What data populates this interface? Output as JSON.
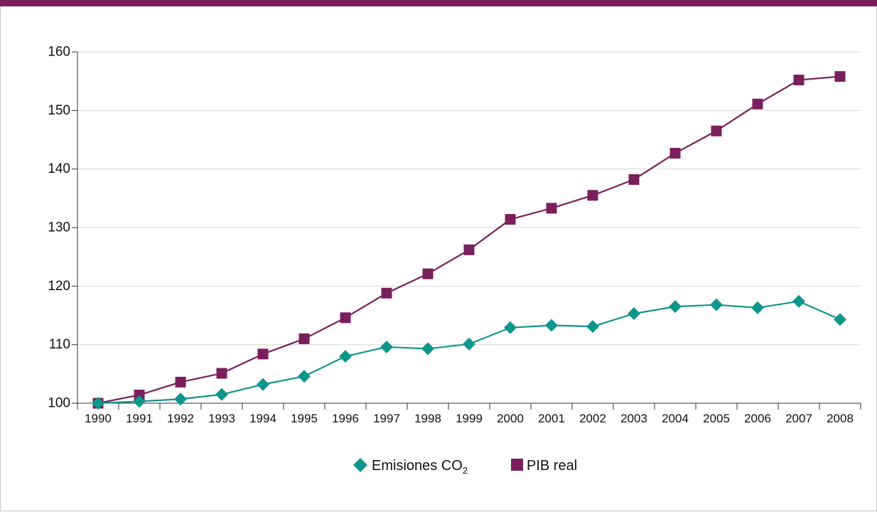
{
  "colors": {
    "accent": "#7a1f5c",
    "co2": "#0f968c",
    "gdp": "#7a1f5c",
    "grid": "#d9d9d9",
    "axis": "#333333"
  },
  "chart_data": {
    "type": "line",
    "x": [
      "1990",
      "1991",
      "1992",
      "1993",
      "1994",
      "1995",
      "1996",
      "1997",
      "1998",
      "1999",
      "2000",
      "2001",
      "2002",
      "2003",
      "2004",
      "2005",
      "2006",
      "2007",
      "2008"
    ],
    "ylim": [
      100,
      160
    ],
    "yticks": [
      100,
      110,
      120,
      130,
      140,
      150,
      160
    ],
    "grid": true,
    "legend": "bottom-center",
    "series": [
      {
        "name": "Emisiones CO",
        "name_subscript": "2",
        "marker": "diamond",
        "values": [
          100.0,
          100.3,
          100.7,
          101.5,
          103.2,
          104.6,
          108.0,
          109.6,
          109.3,
          110.1,
          112.9,
          113.3,
          113.1,
          115.3,
          116.5,
          116.8,
          116.3,
          117.4,
          114.3
        ]
      },
      {
        "name": "PIB real",
        "marker": "square",
        "values": [
          100.0,
          101.4,
          103.6,
          105.1,
          108.4,
          111.0,
          114.6,
          118.8,
          122.1,
          126.2,
          131.4,
          133.3,
          135.5,
          138.2,
          142.7,
          146.5,
          151.1,
          155.2,
          155.8
        ]
      }
    ]
  }
}
